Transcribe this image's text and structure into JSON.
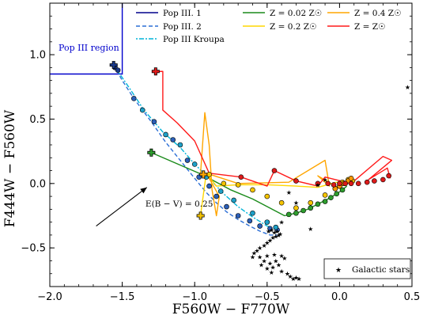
{
  "chart_data": {
    "type": "scatter",
    "xlabel": "F560W − F770W",
    "ylabel": "F444W − F560W",
    "xlim": [
      -2.0,
      0.5
    ],
    "ylim": [
      -0.8,
      1.4
    ],
    "xticks": [
      -2.0,
      -1.5,
      -1.0,
      -0.5,
      0.0,
      0.5
    ],
    "xtick_labels": [
      "−2.0",
      "−1.5",
      "−1.0",
      "−0.5",
      "0.0",
      "0.5"
    ],
    "yticks": [
      -0.5,
      0.0,
      0.5,
      1.0
    ],
    "ytick_labels": [
      "−0.5",
      "0.0",
      "0.5",
      "1.0"
    ],
    "grid": false,
    "legend_position": "top",
    "region": {
      "label": "Pop III region",
      "color": "#0000cc",
      "path": [
        [
          -2.0,
          0.85
        ],
        [
          -1.5,
          0.85
        ],
        [
          -1.5,
          1.4
        ]
      ]
    },
    "reddening_vector": {
      "label": "E(B − V) = 0.25",
      "from": [
        -1.68,
        -0.33
      ],
      "to": [
        -1.33,
        -0.03
      ]
    },
    "series": [
      {
        "name": "Pop III. 1",
        "color": "#00008b",
        "style": "solid",
        "x": [
          -1.57,
          -1.55,
          -1.53,
          -1.52
        ],
        "y": [
          0.92,
          0.91,
          0.89,
          0.87
        ],
        "markers": [
          [
            -1.55,
            0.9
          ],
          [
            -1.53,
            0.88
          ]
        ],
        "marker_color": "#1a3a8c"
      },
      {
        "name": "Pop III. 2",
        "color": "#2c6fd6",
        "style": "dashed",
        "x": [
          -1.56,
          -1.5,
          -1.42,
          -1.3,
          -1.2,
          -1.1,
          -1.0,
          -0.92,
          -0.85,
          -0.78,
          -0.7,
          -0.62,
          -0.55,
          -0.48,
          -0.43
        ],
        "y": [
          0.92,
          0.8,
          0.66,
          0.48,
          0.32,
          0.18,
          0.04,
          -0.07,
          -0.15,
          -0.22,
          -0.28,
          -0.33,
          -0.37,
          -0.4,
          -0.4
        ],
        "markers": [
          [
            -1.42,
            0.66
          ],
          [
            -1.28,
            0.48
          ],
          [
            -1.15,
            0.34
          ],
          [
            -1.05,
            0.18
          ],
          [
            -0.97,
            0.05
          ],
          [
            -0.9,
            -0.02
          ],
          [
            -0.85,
            -0.1
          ],
          [
            -0.78,
            -0.18
          ],
          [
            -0.7,
            -0.25
          ],
          [
            -0.62,
            -0.29
          ],
          [
            -0.55,
            -0.33
          ],
          [
            -0.48,
            -0.35
          ],
          [
            -0.43,
            -0.36
          ]
        ],
        "marker_color": "#2b5fb8"
      },
      {
        "name": "Pop III Kroupa",
        "color": "#00b4d8",
        "style": "dashdot",
        "x": [
          -1.56,
          -1.45,
          -1.35,
          -1.22,
          -1.1,
          -1.0,
          -0.9,
          -0.8,
          -0.7,
          -0.6,
          -0.5,
          -0.43
        ],
        "y": [
          0.92,
          0.74,
          0.57,
          0.4,
          0.28,
          0.15,
          0.04,
          -0.08,
          -0.18,
          -0.26,
          -0.33,
          -0.36
        ],
        "markers": [
          [
            -1.36,
            0.57
          ],
          [
            -1.2,
            0.38
          ],
          [
            -1.1,
            0.3
          ],
          [
            -1.0,
            0.15
          ],
          [
            -0.92,
            0.05
          ],
          [
            -0.82,
            -0.06
          ],
          [
            -0.73,
            -0.13
          ],
          [
            -0.6,
            -0.23
          ],
          [
            -0.5,
            -0.3
          ],
          [
            -0.44,
            -0.34
          ]
        ],
        "marker_color": "#1ea0c8"
      },
      {
        "name": "Z = 0.02 Z☉",
        "color": "#1a8a1a",
        "style": "solid",
        "x": [
          -1.3,
          -0.95,
          -0.75,
          -0.6,
          -0.38,
          -0.3,
          -0.22,
          -0.15,
          -0.08,
          -0.02,
          0.02,
          0.05
        ],
        "y": [
          0.24,
          0.07,
          -0.05,
          -0.12,
          -0.25,
          -0.23,
          -0.2,
          -0.16,
          -0.12,
          -0.08,
          -0.05,
          -0.02
        ],
        "markers": [
          [
            -0.35,
            -0.24
          ],
          [
            -0.3,
            -0.23
          ],
          [
            -0.25,
            -0.21
          ],
          [
            -0.2,
            -0.19
          ],
          [
            -0.15,
            -0.16
          ],
          [
            -0.1,
            -0.14
          ],
          [
            -0.06,
            -0.11
          ],
          [
            -0.02,
            -0.08
          ],
          [
            0.02,
            -0.05
          ]
        ],
        "marker_color": "#2e9e2e"
      },
      {
        "name": "Z = 0.2 Z☉",
        "color": "#ffd700",
        "style": "solid",
        "x": [
          -0.96,
          -0.92,
          -0.85,
          -0.7,
          -0.5,
          -0.3,
          -0.15,
          -0.02,
          0.05,
          0.1
        ],
        "y": [
          -0.25,
          0.08,
          -0.02,
          -0.01,
          -0.01,
          -0.02,
          -0.03,
          0.01,
          0.0,
          0.03
        ],
        "markers": [
          [
            -0.9,
            0.07
          ],
          [
            -0.8,
            0.0
          ],
          [
            -0.7,
            -0.01
          ],
          [
            -0.6,
            -0.05
          ],
          [
            -0.5,
            -0.1
          ],
          [
            -0.4,
            -0.15
          ],
          [
            -0.3,
            -0.19
          ],
          [
            -0.2,
            -0.15
          ],
          [
            -0.1,
            -0.09
          ],
          [
            -0.03,
            -0.04
          ],
          [
            0.02,
            0.01
          ],
          [
            0.06,
            0.03
          ],
          [
            0.09,
            0.02
          ]
        ],
        "marker_color": "#f5c400"
      },
      {
        "name": "Z = 0.4 Z☉",
        "color": "#ffa500",
        "style": "solid",
        "x": [
          -0.96,
          -0.93,
          -0.9,
          -0.88,
          -0.85,
          -0.83,
          -0.92,
          -0.7,
          -0.35,
          -0.1,
          -0.07,
          -0.15,
          0.0,
          0.05,
          0.08
        ],
        "y": [
          0.07,
          0.55,
          0.3,
          -0.05,
          -0.25,
          -0.1,
          0.08,
          0.0,
          0.01,
          0.18,
          -0.02,
          0.06,
          -0.04,
          0.02,
          0.0
        ],
        "markers": [
          [
            -0.03,
            -0.04
          ],
          [
            0.0,
            -0.02
          ],
          [
            0.03,
            0.0
          ],
          [
            0.06,
            0.02
          ],
          [
            0.08,
            0.04
          ]
        ],
        "marker_color": "#ff9900"
      },
      {
        "name": "Z = Z☉",
        "color": "#ff1a1a",
        "style": "solid",
        "x": [
          -1.27,
          -1.22,
          -1.22,
          -1.12,
          -1.0,
          -0.9,
          -0.68,
          -0.5,
          -0.45,
          -0.3,
          -0.15,
          -0.1,
          0.08,
          0.3,
          0.36,
          0.2,
          0.33,
          0.35
        ],
        "y": [
          0.87,
          0.87,
          0.57,
          0.47,
          0.33,
          0.08,
          0.05,
          -0.02,
          0.1,
          0.02,
          -0.02,
          0.05,
          0.0,
          0.21,
          0.18,
          0.03,
          0.12,
          0.04
        ],
        "markers": [
          [
            -0.68,
            0.05
          ],
          [
            -0.45,
            0.1
          ],
          [
            -0.3,
            0.02
          ],
          [
            -0.15,
            0.0
          ],
          [
            -0.08,
            0.0
          ],
          [
            -0.04,
            -0.01
          ],
          [
            0.0,
            0.0
          ],
          [
            0.04,
            0.0
          ],
          [
            0.08,
            0.0
          ],
          [
            0.13,
            0.0
          ],
          [
            0.19,
            0.01
          ],
          [
            0.24,
            0.02
          ],
          [
            0.3,
            0.03
          ],
          [
            0.34,
            0.06
          ]
        ],
        "marker_color": "#dd1a1a"
      }
    ],
    "start_markers": [
      {
        "x": -1.56,
        "y": 0.92,
        "color": "#1a3a8c"
      },
      {
        "x": -1.3,
        "y": 0.24,
        "color": "#2e9e2e"
      },
      {
        "x": -1.27,
        "y": 0.87,
        "color": "#dd1a1a"
      },
      {
        "x": -0.96,
        "y": -0.25,
        "color": "#f5c400"
      },
      {
        "x": -0.94,
        "y": 0.07,
        "color": "#ffa500"
      }
    ],
    "galactic_stars": {
      "name": "Galactic stars",
      "points": [
        [
          -0.52,
          -0.48
        ],
        [
          -0.5,
          -0.46
        ],
        [
          -0.48,
          -0.44
        ],
        [
          -0.46,
          -0.42
        ],
        [
          -0.44,
          -0.41
        ],
        [
          -0.42,
          -0.4
        ],
        [
          -0.55,
          -0.5
        ],
        [
          -0.57,
          -0.52
        ],
        [
          -0.59,
          -0.54
        ],
        [
          -0.6,
          -0.57
        ],
        [
          -0.55,
          -0.57
        ],
        [
          -0.5,
          -0.56
        ],
        [
          -0.45,
          -0.55
        ],
        [
          -0.4,
          -0.56
        ],
        [
          -0.38,
          -0.58
        ],
        [
          -0.52,
          -0.6
        ],
        [
          -0.48,
          -0.62
        ],
        [
          -0.46,
          -0.65
        ],
        [
          -0.44,
          -0.6
        ],
        [
          -0.42,
          -0.63
        ],
        [
          -0.4,
          -0.68
        ],
        [
          -0.36,
          -0.7
        ],
        [
          -0.34,
          -0.72
        ],
        [
          -0.32,
          -0.74
        ],
        [
          -0.3,
          -0.73
        ],
        [
          -0.28,
          -0.74
        ],
        [
          -0.5,
          -0.66
        ],
        [
          -0.47,
          -0.69
        ],
        [
          -0.54,
          -0.63
        ],
        [
          -0.45,
          -0.38
        ],
        [
          -0.43,
          -0.37
        ],
        [
          -0.47,
          -0.36
        ],
        [
          -0.41,
          -0.39
        ],
        [
          -0.49,
          -0.37
        ],
        [
          -0.2,
          -0.35
        ],
        [
          -0.3,
          -0.15
        ],
        [
          -0.35,
          -0.07
        ],
        [
          -0.1,
          0.03
        ],
        [
          -0.15,
          -0.01
        ],
        [
          0.47,
          0.75
        ],
        [
          -0.4,
          -0.3
        ]
      ]
    }
  }
}
